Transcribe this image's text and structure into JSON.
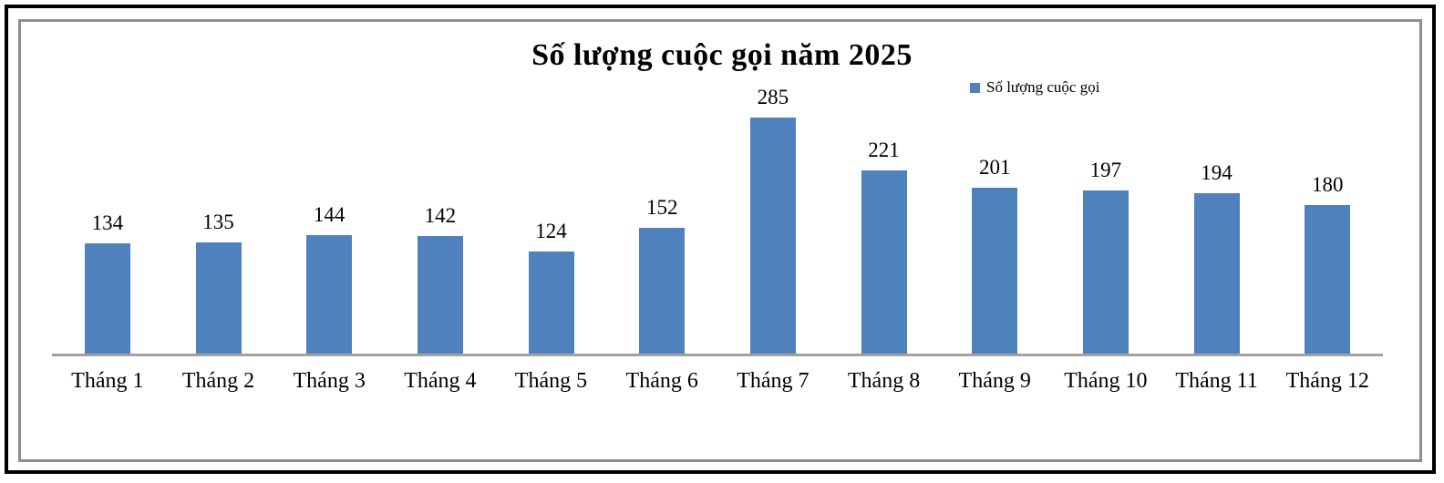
{
  "chart_data": {
    "type": "bar",
    "title": "Số lượng cuộc gọi năm 2025",
    "categories": [
      "Tháng 1",
      "Tháng 2",
      "Tháng 3",
      "Tháng 4",
      "Tháng 5",
      "Tháng 6",
      "Tháng 7",
      "Tháng 8",
      "Tháng 9",
      "Tháng 10",
      "Tháng 11",
      "Tháng 12"
    ],
    "series": [
      {
        "name": "Số lượng cuộc gọi",
        "values": [
          134,
          135,
          144,
          142,
          124,
          152,
          285,
          221,
          201,
          197,
          194,
          180
        ]
      }
    ],
    "xlabel": "",
    "ylabel": "",
    "ylim": [
      0,
      300
    ],
    "grid": false,
    "data_labels": true,
    "legend_position": "top-right",
    "bar_color": "#4F81BD",
    "axis_line_color": "#a1a1a1"
  },
  "legend": {
    "label": "Số lượng cuộc gọi",
    "swatch_color": "#4F81BD"
  }
}
